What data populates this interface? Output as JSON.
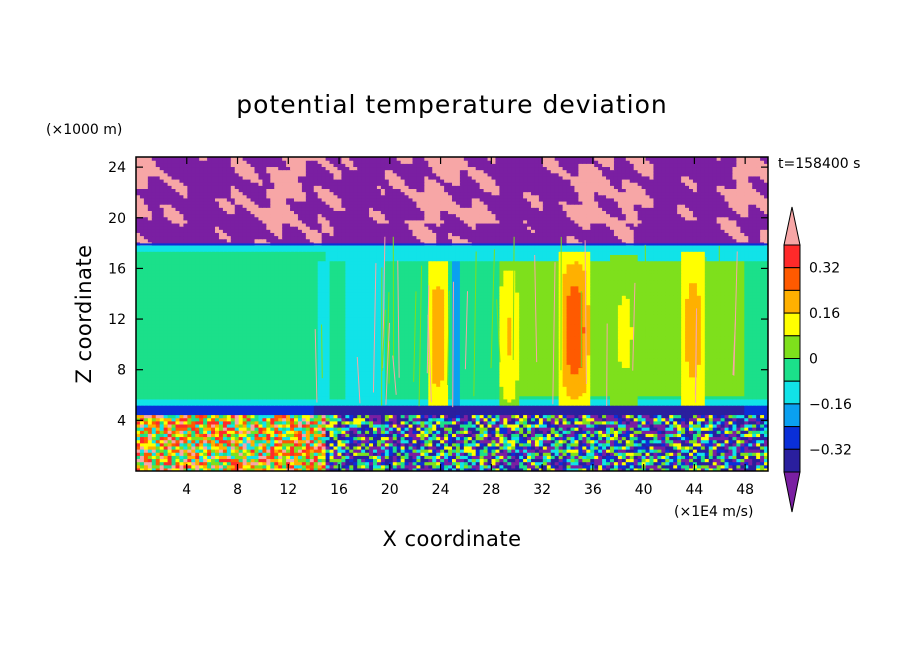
{
  "chart_data": {
    "type": "heatmap",
    "title": "potential temperature deviation",
    "xlabel": "X coordinate",
    "ylabel": "Z coordinate",
    "x_unit": "(×1E4 m/s)",
    "y_unit": "(×1000 m)",
    "time_label": "t=158400 s",
    "xlim": [
      0,
      49.8
    ],
    "ylim": [
      0,
      24.8
    ],
    "x_ticks": [
      4,
      8,
      12,
      16,
      20,
      24,
      28,
      32,
      36,
      40,
      44,
      48
    ],
    "y_ticks": [
      4,
      8,
      12,
      16,
      20,
      24
    ],
    "x_tick_labels": [
      "4",
      "8",
      "12",
      "16",
      "20",
      "24",
      "28",
      "32",
      "36",
      "40",
      "44",
      "48"
    ],
    "y_tick_labels": [
      "4",
      "8",
      "12",
      "16",
      "20",
      "24"
    ],
    "colorbar": {
      "levels": [
        -0.4,
        -0.32,
        -0.24,
        -0.16,
        -0.08,
        0,
        0.08,
        0.16,
        0.24,
        0.32,
        0.4
      ],
      "colors": [
        "#7a1fa2",
        "#2a1f9e",
        "#0a2fd8",
        "#0aa0f0",
        "#11e3e8",
        "#1be08a",
        "#7ee01c",
        "#ffff00",
        "#ffb000",
        "#ff5a00",
        "#ff2a2a",
        "#f7a6a6"
      ],
      "labels": [
        {
          "value": -0.32,
          "text": "−0.32"
        },
        {
          "value": -0.16,
          "text": "−0.16"
        },
        {
          "value": 0,
          "text": "0"
        },
        {
          "value": 0.16,
          "text": "0.16"
        },
        {
          "value": 0.32,
          "text": "0.32"
        }
      ]
    },
    "regions": {
      "upper_band_z": [
        17.8,
        24.8
      ],
      "upper_band_colors": [
        "#7a1fa2",
        "#f7a6a6"
      ],
      "inversion_z": 17.9,
      "mid_band_z": [
        5.2,
        17.8
      ],
      "mid_band_base_value": -0.04,
      "cap_layer_z": [
        16.5,
        17.8
      ],
      "cap_layer_value": -0.12,
      "low_band_z": [
        0,
        5.2
      ],
      "plumes": [
        {
          "x": 23.8,
          "width": 1.6,
          "z_top": 16.5,
          "peak": 0.2
        },
        {
          "x": 29.4,
          "width": 1.5,
          "z_top": 16.5,
          "peak": 0.14
        },
        {
          "x": 34.6,
          "width": 2.4,
          "z_top": 17.4,
          "peak": 0.26
        },
        {
          "x": 38.5,
          "width": 2.2,
          "z_top": 17.0,
          "peak": 0.08
        },
        {
          "x": 43.9,
          "width": 1.8,
          "z_top": 17.4,
          "peak": 0.18
        }
      ],
      "cool_columns": [
        {
          "x": 14.9,
          "width": 1.0,
          "value": -0.1
        },
        {
          "x": 25.3,
          "width": 0.6,
          "value": -0.2
        },
        {
          "x": 18.0,
          "width": 3.0,
          "value": -0.1
        }
      ]
    }
  }
}
